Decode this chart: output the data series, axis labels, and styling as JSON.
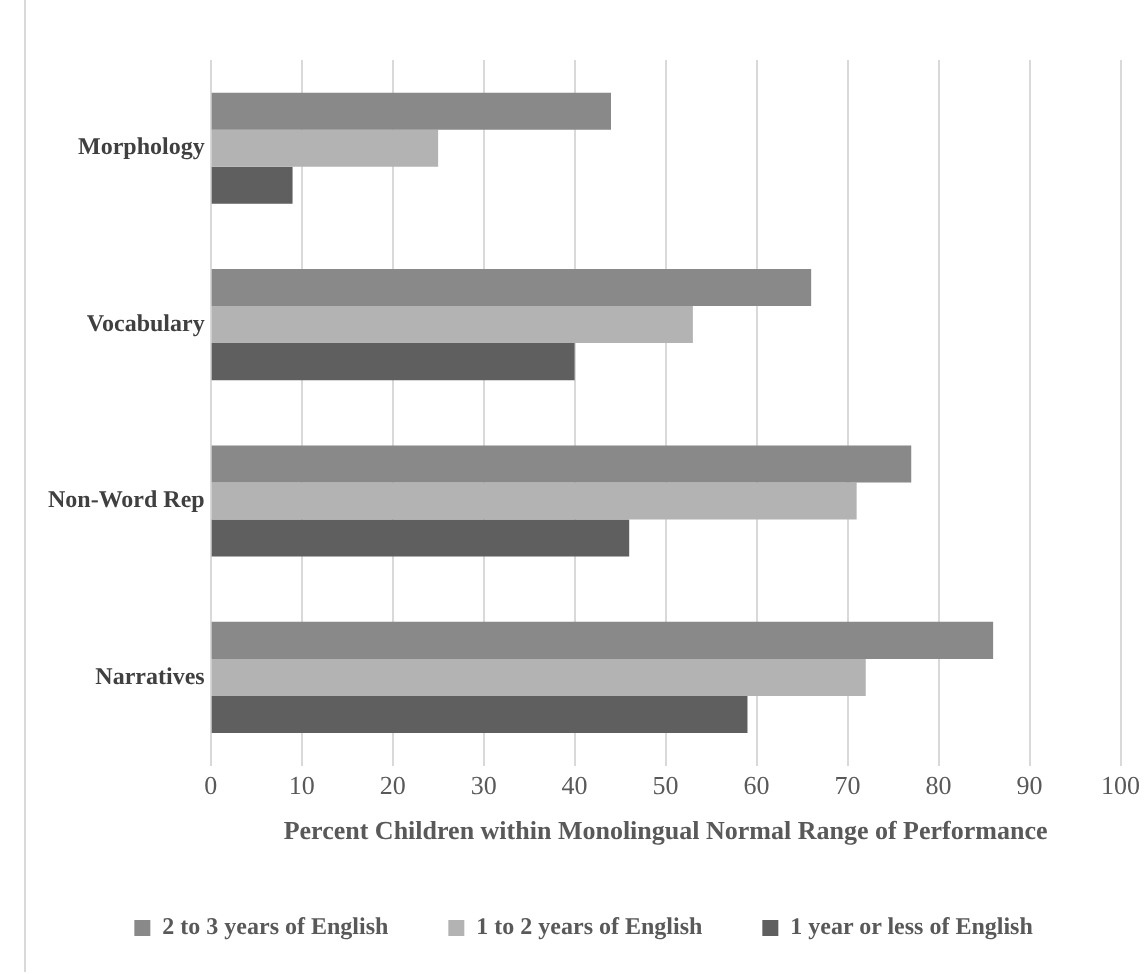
{
  "chart_data": {
    "type": "bar",
    "orientation": "horizontal",
    "xlabel": "Percent Children within Monolingual Normal Range of Performance",
    "categories": [
      "Morphology",
      "Vocabulary",
      "Non-Word Rep",
      "Narratives"
    ],
    "series": [
      {
        "name": "2 to 3 years of English",
        "color": "#898989",
        "values": [
          44,
          66,
          77,
          86
        ]
      },
      {
        "name": "1 to 2 years of English",
        "color": "#b3b3b3",
        "values": [
          25,
          53,
          71,
          72
        ]
      },
      {
        "name": "1 year or less of English",
        "color": "#5f5f5f",
        "values": [
          9,
          40,
          46,
          59
        ]
      }
    ],
    "xlim": [
      0,
      100
    ],
    "xticks": [
      0,
      10,
      20,
      30,
      40,
      50,
      60,
      70,
      80,
      90,
      100
    ],
    "grid": "x",
    "legend": "bottom"
  }
}
